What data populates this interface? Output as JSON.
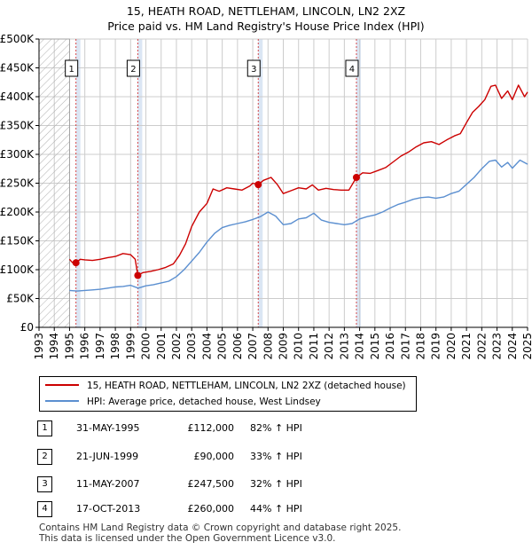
{
  "title_line1": "15, HEATH ROAD, NETTLEHAM, LINCOLN, LN2 2XZ",
  "title_line2": "Price paid vs. HM Land Registry's House Price Index (HPI)",
  "colors": {
    "price": "#cc0000",
    "hpi": "#5b8fd0",
    "band": "#dbe6f4",
    "grid": "#cccccc",
    "marker_line": "#cc0000"
  },
  "chart_data": {
    "type": "line",
    "x_range": [
      1993,
      2025
    ],
    "ylim": [
      0,
      500000
    ],
    "y_ticks": [
      0,
      50000,
      100000,
      150000,
      200000,
      250000,
      300000,
      350000,
      400000,
      450000,
      500000
    ],
    "y_tick_labels": [
      "£0",
      "£50K",
      "£100K",
      "£150K",
      "£200K",
      "£250K",
      "£300K",
      "£350K",
      "£400K",
      "£450K",
      "£500K"
    ],
    "x_ticks": [
      1993,
      1994,
      1995,
      1996,
      1997,
      1998,
      1999,
      2000,
      2001,
      2002,
      2003,
      2004,
      2005,
      2006,
      2007,
      2008,
      2009,
      2010,
      2011,
      2012,
      2013,
      2014,
      2015,
      2016,
      2017,
      2018,
      2019,
      2020,
      2021,
      2022,
      2023,
      2024,
      2025
    ],
    "hatched_until": 1995.0,
    "series": [
      {
        "name": "15, HEATH ROAD, NETTLEHAM, LINCOLN, LN2 2XZ (detached house)",
        "color": "#cc0000",
        "points": [
          [
            1995.0,
            118000
          ],
          [
            1995.2,
            112000
          ],
          [
            1995.42,
            112000
          ],
          [
            1995.7,
            118000
          ],
          [
            1996.0,
            117000
          ],
          [
            1996.5,
            116000
          ],
          [
            1997.0,
            118000
          ],
          [
            1997.5,
            121000
          ],
          [
            1998.0,
            123000
          ],
          [
            1998.5,
            128000
          ],
          [
            1999.0,
            126000
          ],
          [
            1999.3,
            118000
          ],
          [
            1999.47,
            90000
          ],
          [
            1999.8,
            95000
          ],
          [
            2000.3,
            97000
          ],
          [
            2000.8,
            100000
          ],
          [
            2001.3,
            104000
          ],
          [
            2001.8,
            110000
          ],
          [
            2002.2,
            125000
          ],
          [
            2002.6,
            145000
          ],
          [
            2003.0,
            175000
          ],
          [
            2003.5,
            200000
          ],
          [
            2004.0,
            215000
          ],
          [
            2004.4,
            240000
          ],
          [
            2004.8,
            236000
          ],
          [
            2005.3,
            242000
          ],
          [
            2005.8,
            240000
          ],
          [
            2006.3,
            238000
          ],
          [
            2006.8,
            245000
          ],
          [
            2007.0,
            250000
          ],
          [
            2007.36,
            247500
          ],
          [
            2007.7,
            255000
          ],
          [
            2008.2,
            260000
          ],
          [
            2008.6,
            248000
          ],
          [
            2009.0,
            232000
          ],
          [
            2009.5,
            237000
          ],
          [
            2010.0,
            242000
          ],
          [
            2010.5,
            240000
          ],
          [
            2010.9,
            247000
          ],
          [
            2011.3,
            238000
          ],
          [
            2011.8,
            241000
          ],
          [
            2012.3,
            239000
          ],
          [
            2012.8,
            238000
          ],
          [
            2013.3,
            238000
          ],
          [
            2013.79,
            260000
          ],
          [
            2014.2,
            268000
          ],
          [
            2014.7,
            267000
          ],
          [
            2015.2,
            272000
          ],
          [
            2015.7,
            277000
          ],
          [
            2016.2,
            287000
          ],
          [
            2016.7,
            297000
          ],
          [
            2017.2,
            304000
          ],
          [
            2017.7,
            313000
          ],
          [
            2018.2,
            320000
          ],
          [
            2018.7,
            322000
          ],
          [
            2019.2,
            317000
          ],
          [
            2019.7,
            325000
          ],
          [
            2020.2,
            332000
          ],
          [
            2020.6,
            336000
          ],
          [
            2021.0,
            355000
          ],
          [
            2021.4,
            373000
          ],
          [
            2021.8,
            383000
          ],
          [
            2022.2,
            395000
          ],
          [
            2022.6,
            418000
          ],
          [
            2022.9,
            420000
          ],
          [
            2023.3,
            397000
          ],
          [
            2023.7,
            410000
          ],
          [
            2024.0,
            395000
          ],
          [
            2024.4,
            420000
          ],
          [
            2024.8,
            400000
          ],
          [
            2025.0,
            408000
          ]
        ]
      },
      {
        "name": "HPI: Average price, detached house, West Lindsey",
        "color": "#5b8fd0",
        "points": [
          [
            1995.0,
            64000
          ],
          [
            1995.5,
            63000
          ],
          [
            1996.0,
            64000
          ],
          [
            1996.5,
            65000
          ],
          [
            1997.0,
            66000
          ],
          [
            1997.5,
            68000
          ],
          [
            1998.0,
            70000
          ],
          [
            1998.5,
            71000
          ],
          [
            1999.0,
            73000
          ],
          [
            1999.5,
            68000
          ],
          [
            2000.0,
            72000
          ],
          [
            2000.5,
            74000
          ],
          [
            2001.0,
            77000
          ],
          [
            2001.5,
            80000
          ],
          [
            2002.0,
            88000
          ],
          [
            2002.5,
            100000
          ],
          [
            2003.0,
            115000
          ],
          [
            2003.5,
            130000
          ],
          [
            2004.0,
            148000
          ],
          [
            2004.5,
            163000
          ],
          [
            2005.0,
            173000
          ],
          [
            2005.5,
            177000
          ],
          [
            2006.0,
            180000
          ],
          [
            2006.5,
            183000
          ],
          [
            2007.0,
            187000
          ],
          [
            2007.5,
            192000
          ],
          [
            2008.0,
            200000
          ],
          [
            2008.5,
            193000
          ],
          [
            2009.0,
            178000
          ],
          [
            2009.5,
            180000
          ],
          [
            2010.0,
            188000
          ],
          [
            2010.5,
            190000
          ],
          [
            2011.0,
            198000
          ],
          [
            2011.5,
            186000
          ],
          [
            2012.0,
            182000
          ],
          [
            2012.5,
            180000
          ],
          [
            2013.0,
            178000
          ],
          [
            2013.5,
            180000
          ],
          [
            2014.0,
            188000
          ],
          [
            2014.5,
            192000
          ],
          [
            2015.0,
            195000
          ],
          [
            2015.5,
            200000
          ],
          [
            2016.0,
            207000
          ],
          [
            2016.5,
            213000
          ],
          [
            2017.0,
            217000
          ],
          [
            2017.5,
            222000
          ],
          [
            2018.0,
            225000
          ],
          [
            2018.5,
            226000
          ],
          [
            2019.0,
            224000
          ],
          [
            2019.5,
            226000
          ],
          [
            2020.0,
            232000
          ],
          [
            2020.5,
            236000
          ],
          [
            2021.0,
            248000
          ],
          [
            2021.5,
            260000
          ],
          [
            2022.0,
            275000
          ],
          [
            2022.5,
            288000
          ],
          [
            2022.9,
            290000
          ],
          [
            2023.3,
            278000
          ],
          [
            2023.7,
            286000
          ],
          [
            2024.0,
            276000
          ],
          [
            2024.5,
            290000
          ],
          [
            2025.0,
            283000
          ]
        ]
      }
    ],
    "sale_markers": [
      {
        "label": "1",
        "x": 1995.42,
        "y": 112000
      },
      {
        "label": "2",
        "x": 1999.47,
        "y": 90000
      },
      {
        "label": "3",
        "x": 2007.36,
        "y": 247500
      },
      {
        "label": "4",
        "x": 2013.79,
        "y": 260000
      }
    ]
  },
  "legend": {
    "price_label": "15, HEATH ROAD, NETTLEHAM, LINCOLN, LN2 2XZ (detached house)",
    "hpi_label": "HPI: Average price, detached house, West Lindsey"
  },
  "sales": [
    {
      "num": "1",
      "date": "31-MAY-1995",
      "price": "£112,000",
      "hpi": "82% ↑ HPI"
    },
    {
      "num": "2",
      "date": "21-JUN-1999",
      "price": "£90,000",
      "hpi": "33% ↑ HPI"
    },
    {
      "num": "3",
      "date": "11-MAY-2007",
      "price": "£247,500",
      "hpi": "32% ↑ HPI"
    },
    {
      "num": "4",
      "date": "17-OCT-2013",
      "price": "£260,000",
      "hpi": "44% ↑ HPI"
    }
  ],
  "footer_line1": "Contains HM Land Registry data © Crown copyright and database right 2025.",
  "footer_line2": "This data is licensed under the Open Government Licence v3.0."
}
